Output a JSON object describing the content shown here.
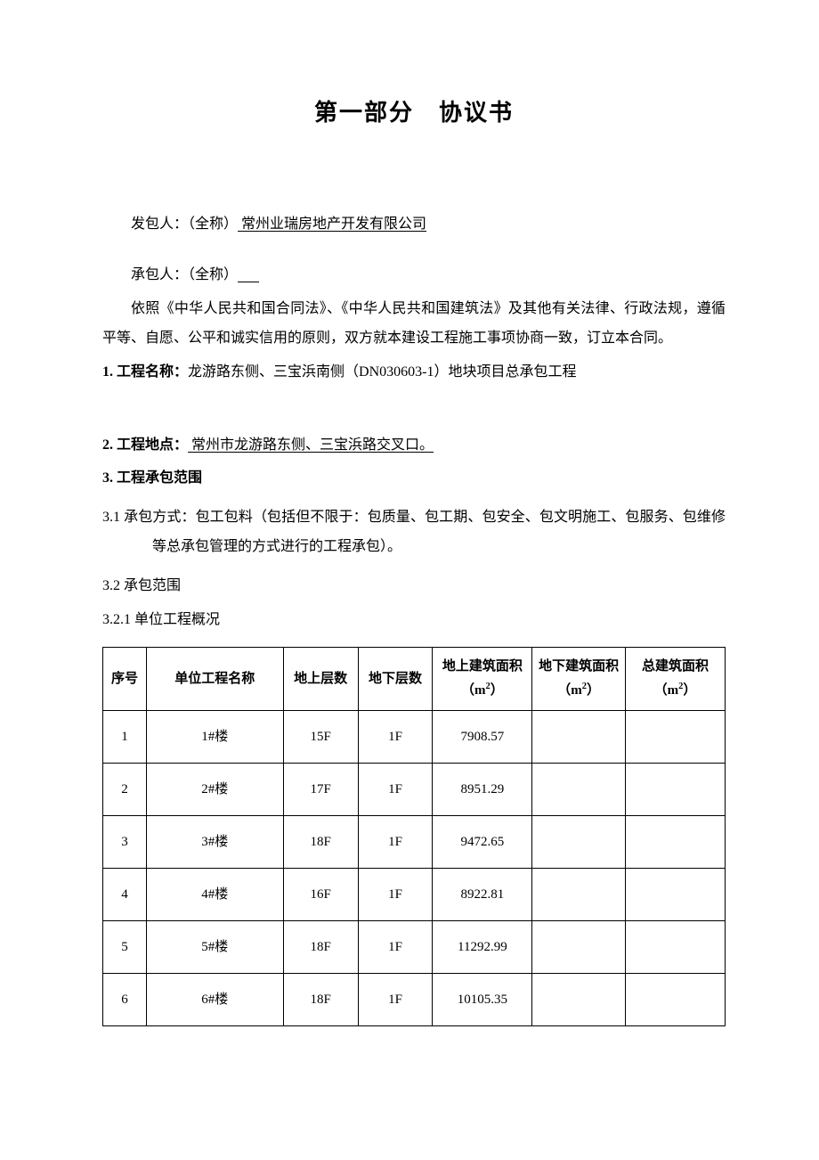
{
  "title": "第一部分　协议书",
  "party": {
    "fbr_label": "发包人：（全称）",
    "fbr_value": " 常州业瑞房地产开发有限公司",
    "cbr_label": "承包人：（全称）",
    "cbr_blank": "      "
  },
  "intro": "依照《中华人民共和国合同法》、《中华人民共和国建筑法》及其他有关法律、行政法规，遵循平等、自愿、公平和诚实信用的原则，双方就本建设工程施工事项协商一致，订立本合同。",
  "s1": {
    "label": "1. 工程名称：",
    "text": "龙游路东侧、三宝浜南侧（DN030603-1）地块项目总承包工程"
  },
  "s2": {
    "label": "2. 工程地点：",
    "text": " 常州市龙游路东侧、三宝浜路交叉口。"
  },
  "s3": {
    "label": "3. 工程承包范围",
    "s31_label": "3.1  承包方式：",
    "s31_text": "包工包料（包括但不限于：包质量、包工期、包安全、包文明施工、包服务、包维修等总承包管理的方式进行的工程承包）。",
    "s32_label": "3.2  承包范围",
    "s321_label": "3.2.1 单位工程概况"
  },
  "table": {
    "columns": [
      "序号",
      "单位工程名称",
      "地上层数",
      "地下层数",
      "地上建筑面积（m2）",
      "地下建筑面积（m2）",
      "总建筑面积（m2）"
    ],
    "rows": [
      [
        "1",
        "1#楼",
        "15F",
        "1F",
        "7908.57",
        "",
        ""
      ],
      [
        "2",
        "2#楼",
        "17F",
        "1F",
        "8951.29",
        "",
        ""
      ],
      [
        "3",
        "3#楼",
        "18F",
        "1F",
        "9472.65",
        "",
        ""
      ],
      [
        "4",
        "4#楼",
        "16F",
        "1F",
        "8922.81",
        "",
        ""
      ],
      [
        "5",
        "5#楼",
        "18F",
        "1F",
        "11292.99",
        "",
        ""
      ],
      [
        "6",
        "6#楼",
        "18F",
        "1F",
        "10105.35",
        "",
        ""
      ]
    ]
  }
}
